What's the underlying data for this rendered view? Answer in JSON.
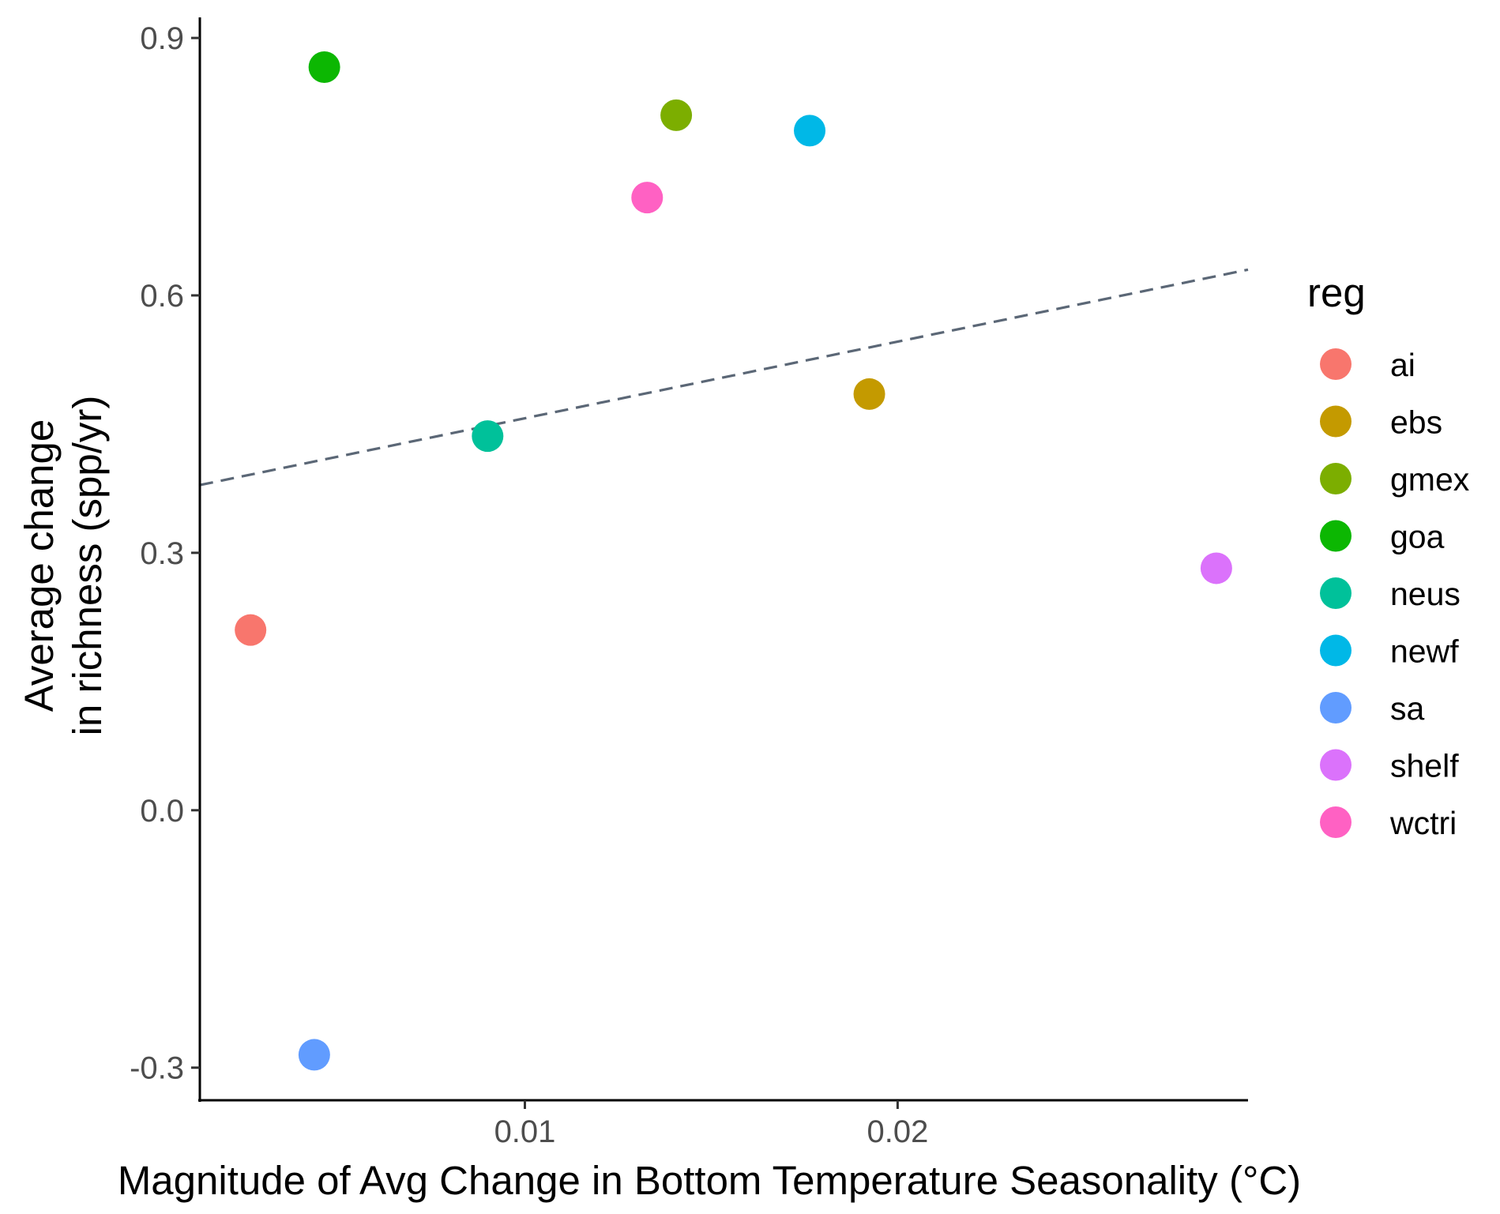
{
  "chart_data": {
    "type": "scatter",
    "xlabel": "Magnitude of Avg Change in Bottom Temperature Seasonality (°C)",
    "ylabel_lines": [
      "Average change",
      "in richness (spp/yr)"
    ],
    "xlim": [
      0.00128,
      0.0294
    ],
    "ylim": [
      -0.338,
      0.924
    ],
    "x_ticks": [
      {
        "value": 0.01,
        "label": "0.01"
      },
      {
        "value": 0.02,
        "label": "0.02"
      }
    ],
    "y_ticks": [
      {
        "value": -0.3,
        "label": "-0.3"
      },
      {
        "value": 0.0,
        "label": "0.0"
      },
      {
        "value": 0.3,
        "label": "0.3"
      },
      {
        "value": 0.6,
        "label": "0.6"
      },
      {
        "value": 0.9,
        "label": "0.9"
      }
    ],
    "grid": false,
    "legend": {
      "title": "reg",
      "position": "right"
    },
    "series": [
      {
        "name": "ai",
        "color": "#F8766D",
        "points": [
          {
            "x": 0.00264,
            "y": 0.21
          }
        ]
      },
      {
        "name": "ebs",
        "color": "#C49A00",
        "points": [
          {
            "x": 0.01924,
            "y": 0.485
          }
        ]
      },
      {
        "name": "gmex",
        "color": "#7CAE00",
        "points": [
          {
            "x": 0.01406,
            "y": 0.81
          }
        ]
      },
      {
        "name": "goa",
        "color": "#0CB702",
        "points": [
          {
            "x": 0.00462,
            "y": 0.866
          }
        ]
      },
      {
        "name": "neus",
        "color": "#00C19A",
        "points": [
          {
            "x": 0.009,
            "y": 0.436
          }
        ]
      },
      {
        "name": "newf",
        "color": "#00B8E7",
        "points": [
          {
            "x": 0.01764,
            "y": 0.792
          }
        ]
      },
      {
        "name": "sa",
        "color": "#619CFF",
        "points": [
          {
            "x": 0.00435,
            "y": -0.285
          }
        ]
      },
      {
        "name": "shelf",
        "color": "#DB72FB",
        "points": [
          {
            "x": 0.02855,
            "y": 0.282
          }
        ]
      },
      {
        "name": "wctri",
        "color": "#FF61C3",
        "points": [
          {
            "x": 0.01328,
            "y": 0.714
          }
        ]
      }
    ],
    "trendline": {
      "style": "dashed",
      "color": "#5b6776",
      "from": {
        "x": 0.00128,
        "y": 0.379
      },
      "to": {
        "x": 0.0294,
        "y": 0.63
      }
    }
  }
}
